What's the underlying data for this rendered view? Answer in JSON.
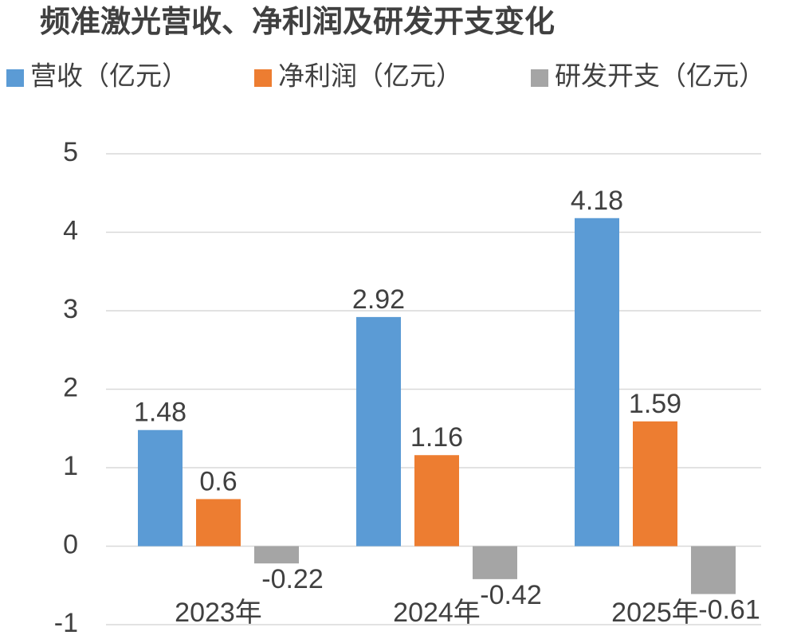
{
  "chart_data": {
    "type": "bar",
    "title": "频准激光营收、净利润及研发开支变化",
    "categories": [
      "2023年",
      "2024年",
      "2025年"
    ],
    "series": [
      {
        "name": "营收（亿元）",
        "color": "#5b9bd5",
        "values": [
          1.48,
          2.92,
          4.18
        ]
      },
      {
        "name": "净利润（亿元）",
        "color": "#ed7d31",
        "values": [
          0.6,
          1.16,
          1.59
        ]
      },
      {
        "name": "研发开支（亿元）",
        "color": "#a5a5a5",
        "values": [
          -0.22,
          -0.42,
          -0.61
        ]
      }
    ],
    "ylim": [
      -1,
      5
    ],
    "yticks": [
      -1,
      0,
      1,
      2,
      3,
      4,
      5
    ],
    "grid": true
  }
}
